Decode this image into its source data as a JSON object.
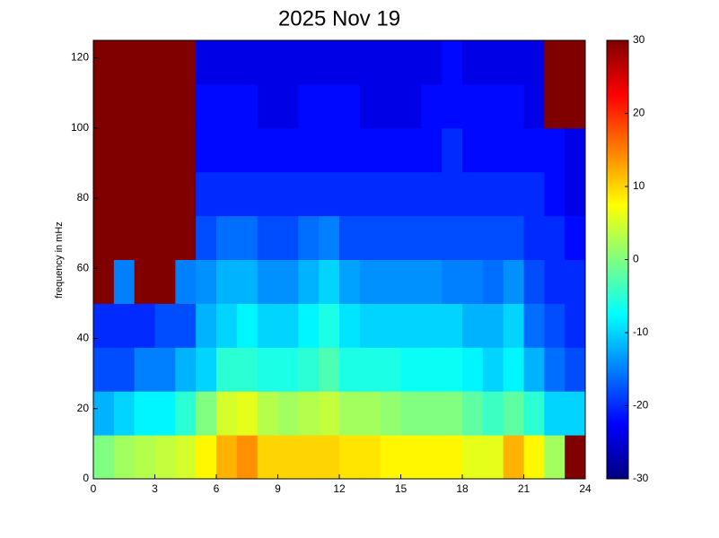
{
  "chart_data": {
    "type": "heatmap",
    "title": "2025 Nov 19",
    "ylabel": "frequency in mHz",
    "xbins": [
      0,
      1,
      2,
      3,
      4,
      5,
      6,
      7,
      8,
      9,
      10,
      11,
      12,
      13,
      14,
      15,
      16,
      17,
      18,
      19,
      20,
      21,
      22,
      23,
      24
    ],
    "ybins": [
      0,
      12.5,
      25,
      37.5,
      50,
      62.5,
      75,
      87.5,
      100,
      112.5,
      125
    ],
    "values": [
      [
        0,
        -12,
        -18,
        -20,
        30,
        30,
        30,
        30,
        30,
        30
      ],
      [
        2,
        -10,
        -18,
        -20,
        -15,
        30,
        30,
        30,
        30,
        30
      ],
      [
        3,
        -8,
        -15,
        -20,
        30,
        30,
        30,
        30,
        30,
        30
      ],
      [
        4,
        -8,
        -15,
        -18,
        30,
        30,
        30,
        30,
        30,
        30
      ],
      [
        5,
        -5,
        -12,
        -18,
        -15,
        30,
        30,
        30,
        30,
        30
      ],
      [
        8,
        0,
        -10,
        -12,
        -14,
        -18,
        -20,
        -22,
        -22,
        -24
      ],
      [
        12,
        5,
        -5,
        -10,
        -12,
        -16,
        -20,
        -22,
        -22,
        -24
      ],
      [
        14,
        6,
        -5,
        -8,
        -12,
        -16,
        -20,
        -22,
        -22,
        -24
      ],
      [
        10,
        3,
        -6,
        -10,
        -14,
        -18,
        -20,
        -22,
        -24,
        -24
      ],
      [
        10,
        2,
        -6,
        -10,
        -14,
        -18,
        -20,
        -22,
        -24,
        -24
      ],
      [
        10,
        3,
        -5,
        -8,
        -12,
        -16,
        -20,
        -22,
        -22,
        -24
      ],
      [
        10,
        4,
        -3,
        -6,
        -10,
        -15,
        -20,
        -22,
        -22,
        -24
      ],
      [
        9,
        2,
        -6,
        -9,
        -13,
        -18,
        -20,
        -22,
        -22,
        -24
      ],
      [
        9,
        2,
        -6,
        -10,
        -14,
        -18,
        -20,
        -22,
        -24,
        -24
      ],
      [
        8,
        1,
        -6,
        -10,
        -14,
        -18,
        -20,
        -22,
        -24,
        -24
      ],
      [
        8,
        0,
        -7,
        -10,
        -14,
        -18,
        -20,
        -22,
        -24,
        -24
      ],
      [
        8,
        0,
        -7,
        -10,
        -14,
        -18,
        -20,
        -22,
        -22,
        -24
      ],
      [
        8,
        0,
        -7,
        -10,
        -15,
        -18,
        -20,
        -20,
        -22,
        -22
      ],
      [
        6,
        -2,
        -8,
        -12,
        -15,
        -18,
        -20,
        -22,
        -22,
        -24
      ],
      [
        6,
        -4,
        -10,
        -12,
        -16,
        -18,
        -20,
        -22,
        -22,
        -24
      ],
      [
        12,
        -2,
        -8,
        -10,
        -14,
        -18,
        -20,
        -22,
        -22,
        -24
      ],
      [
        8,
        -5,
        -12,
        -16,
        -18,
        -20,
        -20,
        -22,
        -24,
        -24
      ],
      [
        2,
        -10,
        -16,
        -18,
        -20,
        -20,
        -22,
        -22,
        30,
        30
      ],
      [
        30,
        -10,
        -18,
        -20,
        -20,
        -22,
        -24,
        -24,
        30,
        30
      ]
    ],
    "colormap": "jet",
    "xlim": [
      0,
      24
    ],
    "xticks": [
      0,
      3,
      6,
      9,
      12,
      15,
      18,
      21,
      24
    ],
    "ylim": [
      0,
      125
    ],
    "yticks": [
      0,
      20,
      40,
      60,
      80,
      100,
      120
    ],
    "clim": [
      -30,
      30
    ],
    "cticks": [
      -30,
      -20,
      -10,
      0,
      10,
      20,
      30
    ]
  }
}
